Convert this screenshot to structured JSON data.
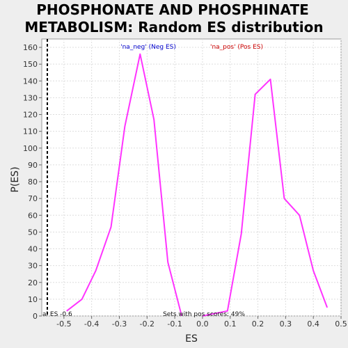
{
  "chart_data": {
    "type": "line",
    "title_lines": [
      "PHOSPHONATE AND PHOSPHINATE",
      "METABOLISM: Random ES distribution"
    ],
    "xlabel": "ES",
    "ylabel": "P(ES)",
    "xlim": [
      -0.58,
      0.5
    ],
    "ylim": [
      0,
      165
    ],
    "x_ticks": [
      -0.5,
      -0.4,
      -0.3,
      -0.2,
      -0.1,
      0.0,
      0.1,
      0.2,
      0.3,
      0.4,
      0.5
    ],
    "x_tick_labels": [
      "-0.5",
      "-0.4",
      "-0.3",
      "-0.2",
      "-0.1",
      "0.0",
      "0.1",
      "0.2",
      "0.3",
      "0.4",
      "0.5"
    ],
    "y_ticks": [
      0,
      10,
      20,
      30,
      40,
      50,
      60,
      70,
      80,
      90,
      100,
      110,
      120,
      130,
      140,
      150,
      160
    ],
    "grid": true,
    "series": [
      {
        "name": "'na_neg' (Neg ES)",
        "color": "#ff33ff",
        "points": [
          [
            -0.49,
            3
          ],
          [
            -0.435,
            10
          ],
          [
            -0.385,
            27
          ],
          [
            -0.33,
            53
          ],
          [
            -0.28,
            113
          ],
          [
            -0.225,
            156
          ],
          [
            -0.175,
            117
          ],
          [
            -0.125,
            32
          ],
          [
            -0.075,
            0
          ]
        ]
      },
      {
        "name": "'na_pos' (Pos ES)",
        "color": "#ff33ff",
        "points": [
          [
            0.0,
            0
          ],
          [
            0.09,
            3
          ],
          [
            0.14,
            49
          ],
          [
            0.19,
            132
          ],
          [
            0.245,
            141
          ],
          [
            0.295,
            70
          ],
          [
            0.35,
            60
          ],
          [
            0.4,
            27
          ],
          [
            0.45,
            5
          ]
        ]
      }
    ],
    "legend": [
      {
        "label": "'na_neg' (Neg ES)",
        "color": "#0000cc"
      },
      {
        "label": "'na_pos' (Pos ES)",
        "color": "#cc0000"
      }
    ],
    "actual_es": -0.56,
    "actual_es_label": "al ES -0.6",
    "annotation": "Sets with pos scores: 49%"
  }
}
